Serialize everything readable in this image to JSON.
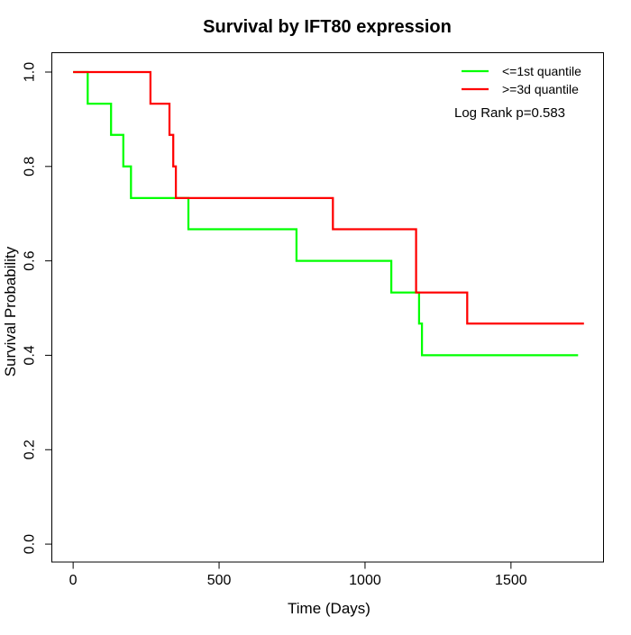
{
  "page": {
    "background": "#ffffff"
  },
  "chart_data": {
    "type": "line",
    "subtype": "kaplan-meier-step-curves",
    "title": "Survival by IFT80 expression",
    "xlabel": "Time (Days)",
    "ylabel": "Survival Probability",
    "xlim": [
      -73,
      1817
    ],
    "ylim": [
      -0.038,
      1.041
    ],
    "xticks": [
      "0",
      "500",
      "1000",
      "1500"
    ],
    "yticks": [
      "0.0",
      "0.2",
      "0.4",
      "0.6",
      "0.8",
      "1.0"
    ],
    "grid": false,
    "legend_position": "top-right",
    "annotation": "Log Rank p=0.583",
    "axis_color": "#000000",
    "series": [
      {
        "name": "<=1st quantile",
        "color": "#00ff00",
        "event_times": [
          0,
          50,
          130,
          172,
          198,
          395,
          765,
          1090,
          1185,
          1195
        ],
        "survival": [
          1.0,
          0.933,
          0.867,
          0.8,
          0.733,
          0.667,
          0.6,
          0.533,
          0.467,
          0.4
        ],
        "end_time": 1730
      },
      {
        "name": ">=3d quantile",
        "color": "#ff0000",
        "event_times": [
          0,
          265,
          330,
          343,
          352,
          890,
          1175,
          1350
        ],
        "survival": [
          1.0,
          0.933,
          0.867,
          0.8,
          0.733,
          0.667,
          0.533,
          0.467
        ],
        "end_time": 1750
      }
    ]
  }
}
